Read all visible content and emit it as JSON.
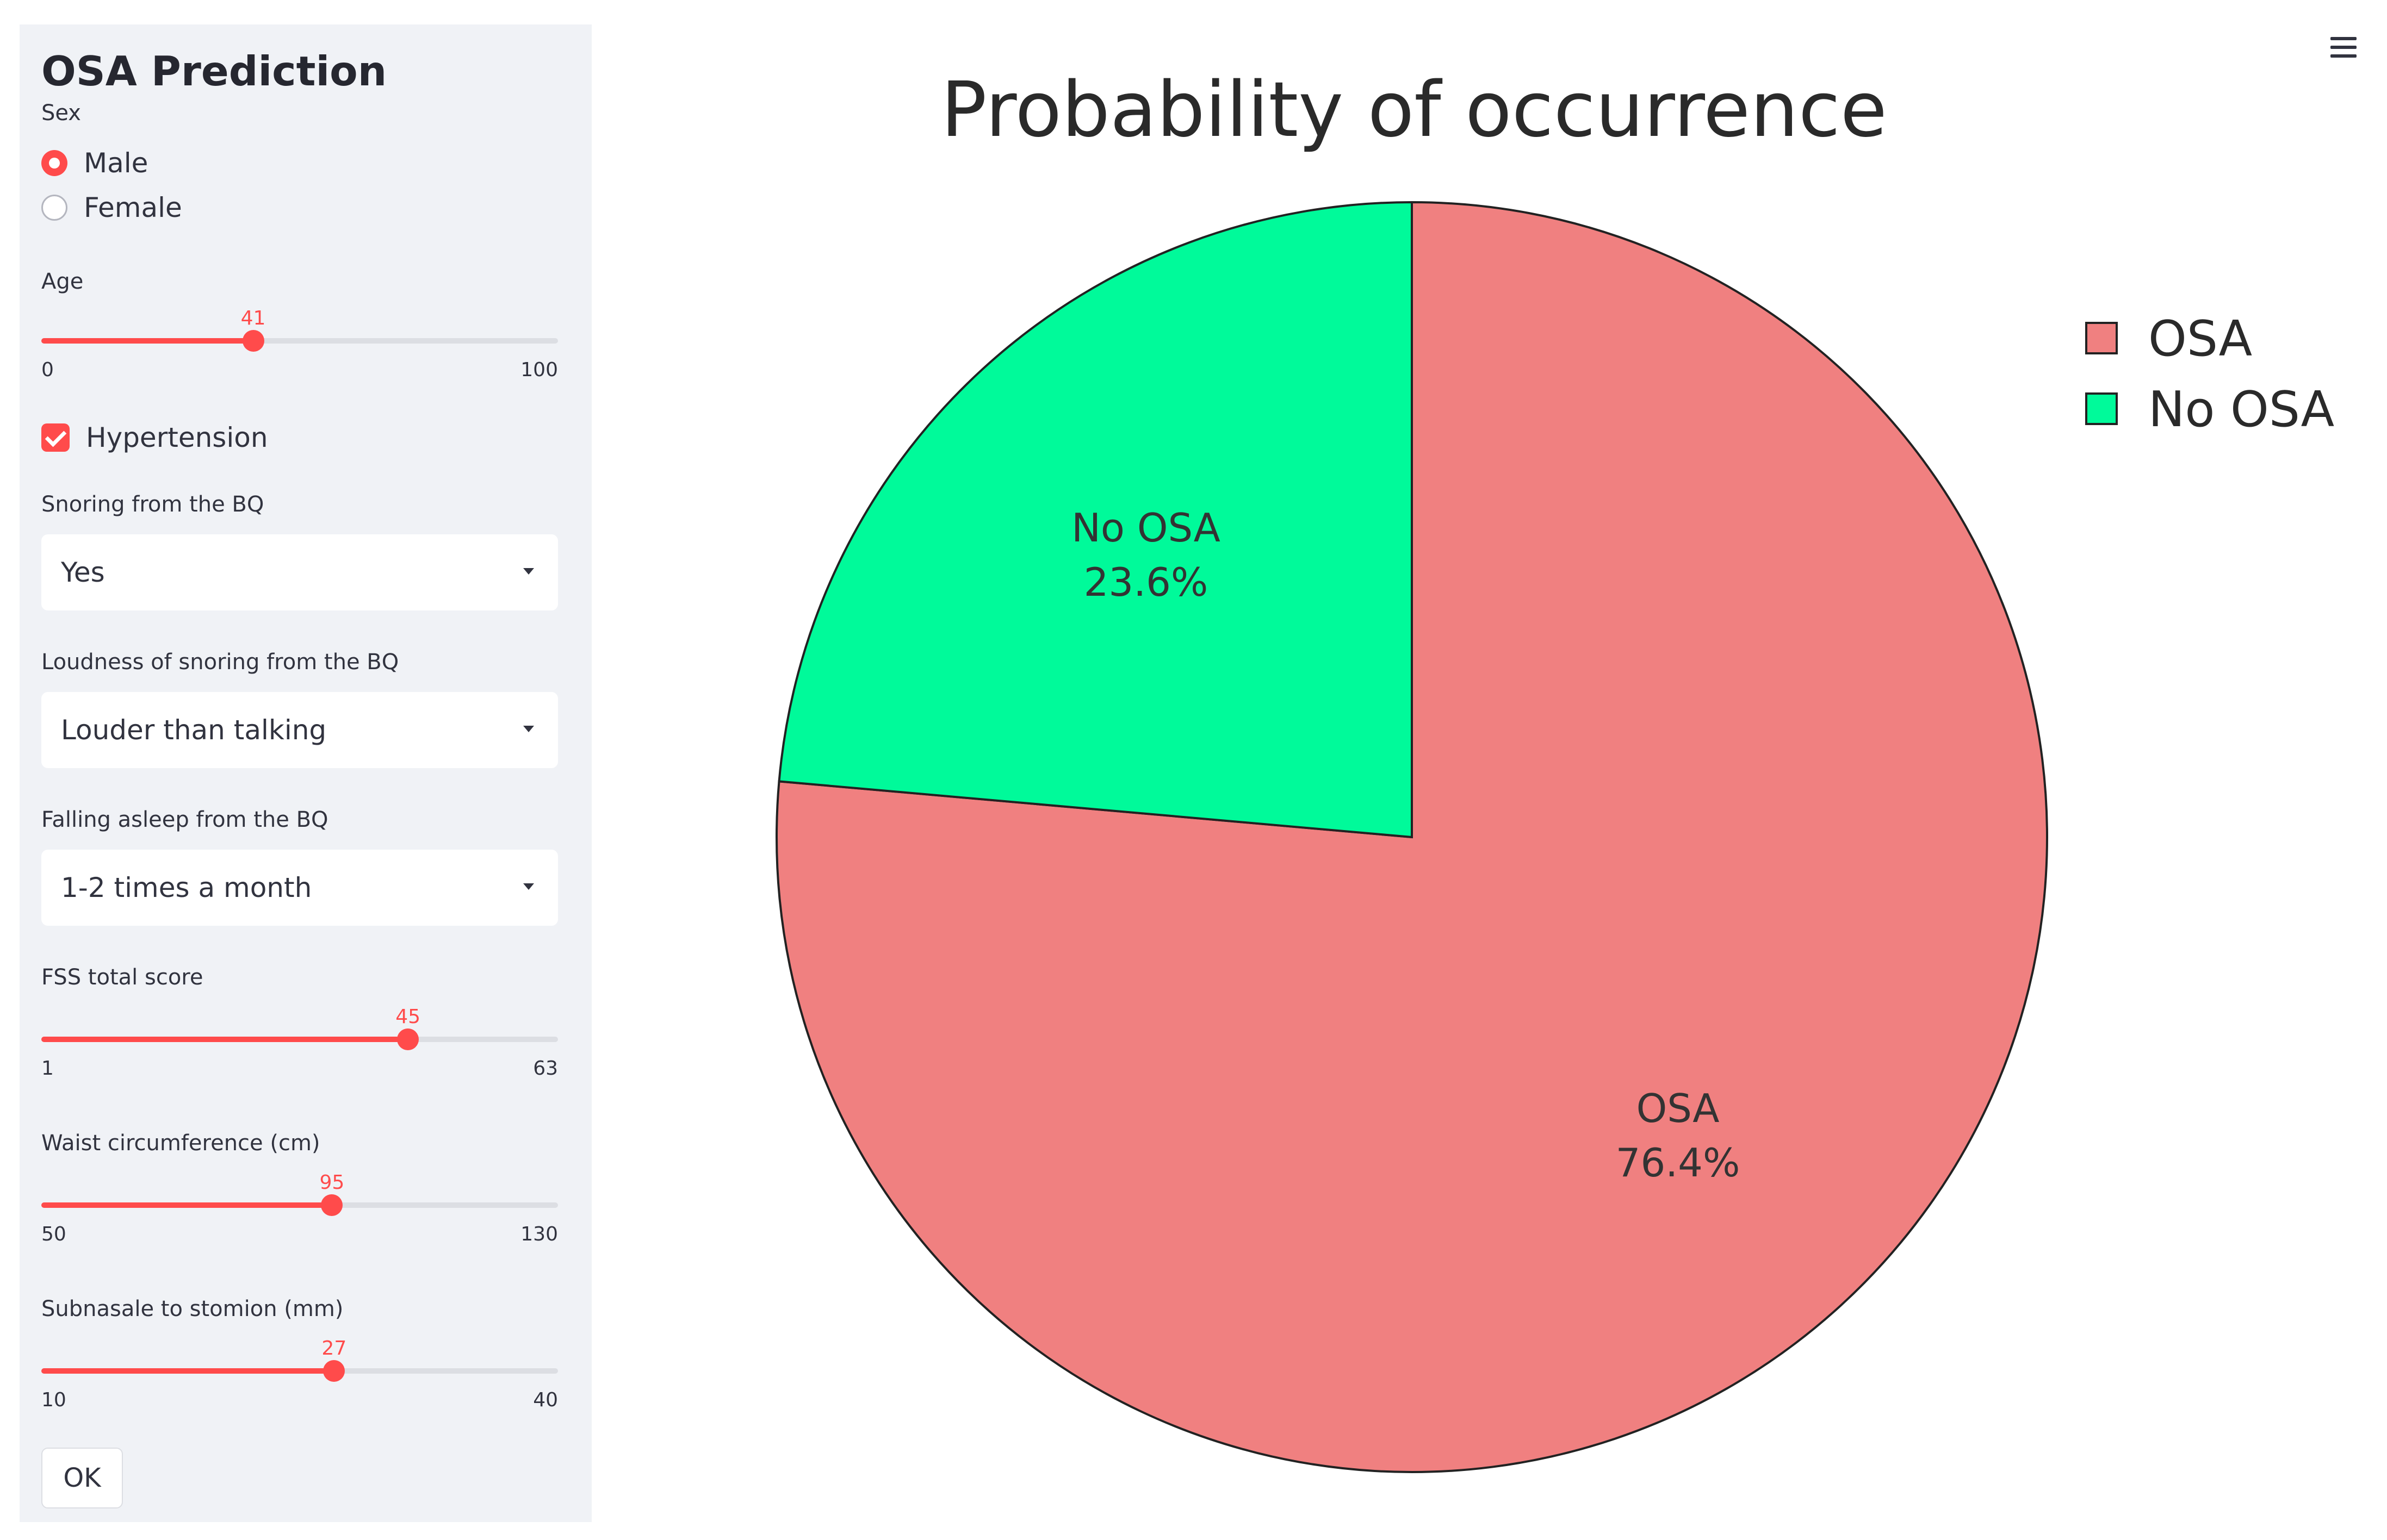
{
  "sidebar": {
    "title": "OSA Prediction",
    "sex": {
      "label": "Sex",
      "options": [
        "Male",
        "Female"
      ],
      "selected": "Male"
    },
    "age": {
      "label": "Age",
      "value": 41,
      "min": 0,
      "max": 100
    },
    "hypertension": {
      "label": "Hypertension",
      "checked": true
    },
    "snoring": {
      "label": "Snoring from the BQ",
      "value": "Yes"
    },
    "loudness": {
      "label": "Loudness of snoring from the BQ",
      "value": "Louder than talking"
    },
    "falling_asleep": {
      "label": "Falling asleep from the BQ",
      "value": "1-2 times a month"
    },
    "fss": {
      "label": "FSS total score",
      "value": 45,
      "min": 1,
      "max": 63
    },
    "waist": {
      "label": "Waist circumference (cm)",
      "value": 95,
      "min": 50,
      "max": 130
    },
    "subnasale": {
      "label": "Subnasale to stomion (mm)",
      "value": 27,
      "min": 10,
      "max": 40
    },
    "ok_label": "OK"
  },
  "colors": {
    "accent": "#ff4b4b",
    "sidebar_bg": "#f0f2f6",
    "osa": "#f08080",
    "no_osa": "#00fa9a"
  },
  "icons": {
    "menu": "hamburger-menu-icon"
  },
  "chart_data": {
    "type": "pie",
    "title": "Probability of occurrence",
    "slices": [
      {
        "label": "OSA",
        "value": 76.4,
        "percent_label": "76.4%",
        "color": "#f08080"
      },
      {
        "label": "No OSA",
        "value": 23.6,
        "percent_label": "23.6%",
        "color": "#00fa9a"
      }
    ],
    "legend": {
      "position": "right",
      "entries": [
        "OSA",
        "No OSA"
      ]
    }
  }
}
